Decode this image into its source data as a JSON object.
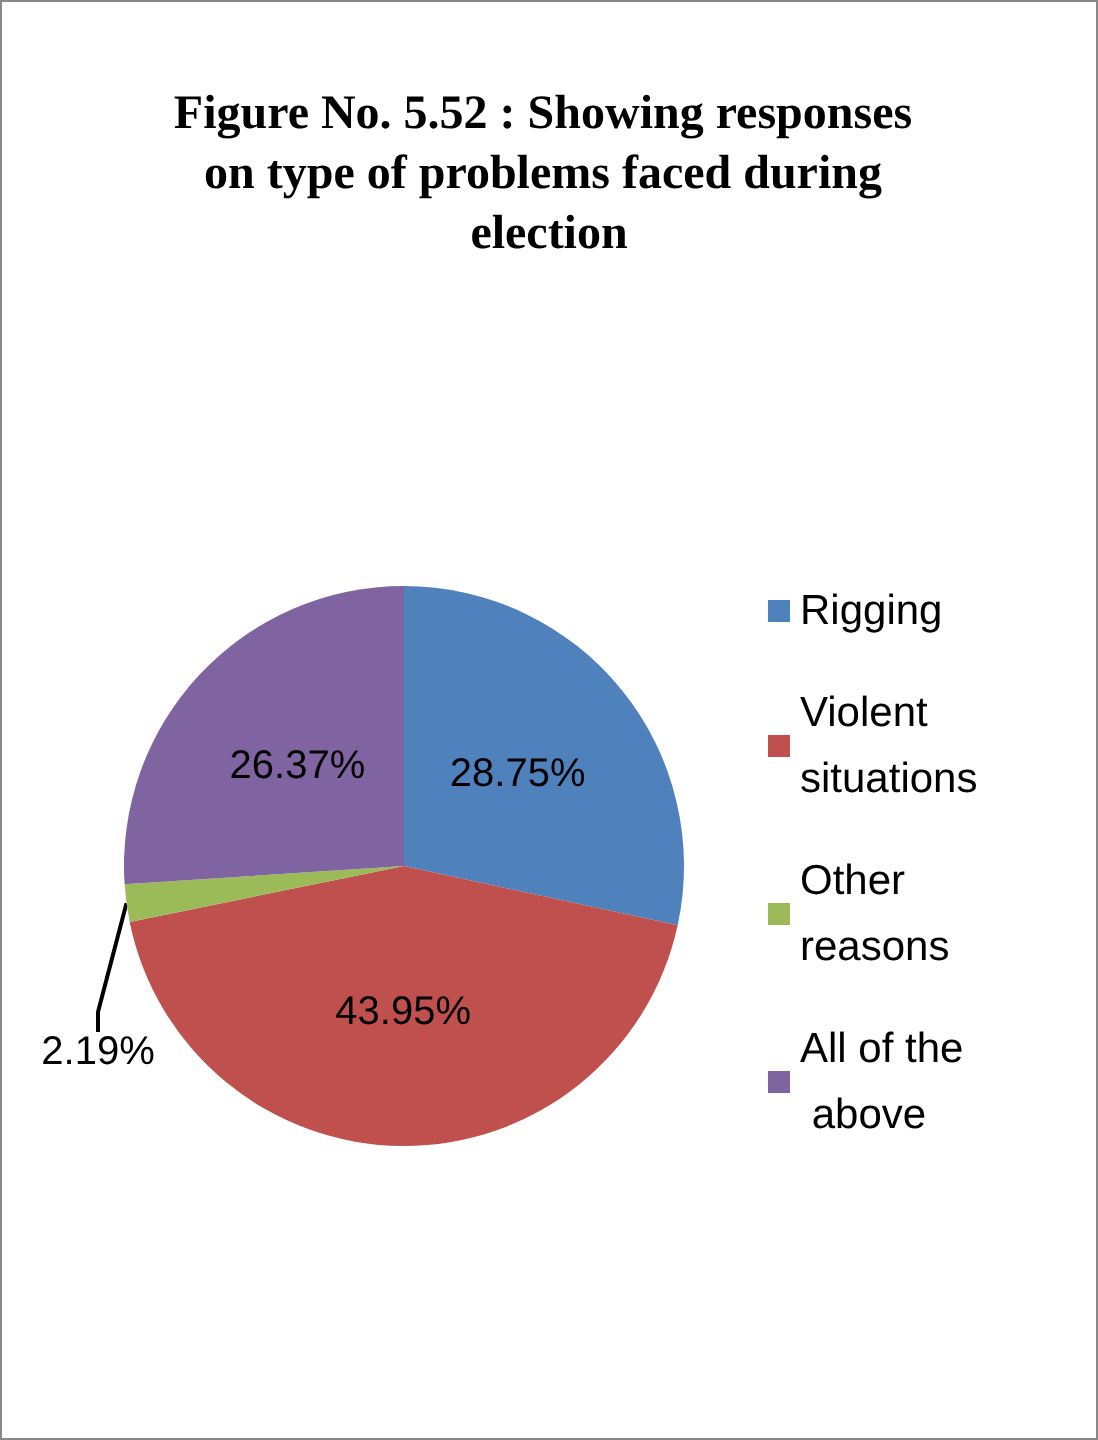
{
  "chart_data": {
    "type": "pie",
    "title": "Figure No. 5.52 : Showing responses on type of problems faced during election",
    "categories": [
      "Rigging",
      "Violent situations",
      "Other reasons",
      "All of the above"
    ],
    "values": [
      28.75,
      43.95,
      2.19,
      26.37
    ],
    "colors": [
      "#4f81bd",
      "#c0504d",
      "#9bbb59",
      "#8064a2"
    ],
    "value_labels": [
      "28.75%",
      "43.95%",
      "2.19%",
      "26.37%"
    ],
    "legend": "right"
  }
}
